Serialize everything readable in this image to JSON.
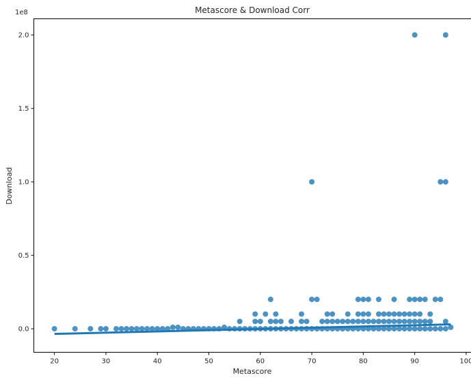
{
  "chart_data": {
    "type": "scatter",
    "title": "Metascore & Download Corr",
    "xlabel": "Metascore",
    "ylabel": "Download",
    "y_offset_label": "1e8",
    "xlim": [
      16,
      101
    ],
    "ylim": [
      -0.16,
      2.11
    ],
    "y_scale_factor": 100000000,
    "x_ticks": [
      20,
      30,
      40,
      50,
      60,
      70,
      80,
      90,
      100
    ],
    "x_tick_labels": [
      "20",
      "30",
      "40",
      "50",
      "60",
      "70",
      "80",
      "90",
      "100"
    ],
    "y_ticks": [
      0.0,
      0.5,
      1.0,
      1.5,
      2.0
    ],
    "y_tick_labels": [
      "0.0",
      "0.5",
      "1.0",
      "1.5",
      "2.0"
    ],
    "grid": false,
    "color": "#1f77b4",
    "points": [
      {
        "x": 20,
        "y": 0.0
      },
      {
        "x": 24,
        "y": 0.0
      },
      {
        "x": 27,
        "y": 0.0
      },
      {
        "x": 29,
        "y": 0.0
      },
      {
        "x": 30,
        "y": 0.0
      },
      {
        "x": 32,
        "y": 0.0
      },
      {
        "x": 33,
        "y": 0.0
      },
      {
        "x": 34,
        "y": 0.0
      },
      {
        "x": 35,
        "y": 0.0
      },
      {
        "x": 36,
        "y": 0.0
      },
      {
        "x": 37,
        "y": 0.0
      },
      {
        "x": 38,
        "y": 0.0
      },
      {
        "x": 39,
        "y": 0.0
      },
      {
        "x": 40,
        "y": 0.0
      },
      {
        "x": 41,
        "y": 0.0
      },
      {
        "x": 42,
        "y": 0.0
      },
      {
        "x": 43,
        "y": 0.01
      },
      {
        "x": 44,
        "y": 0.01
      },
      {
        "x": 45,
        "y": 0.0
      },
      {
        "x": 46,
        "y": 0.0
      },
      {
        "x": 47,
        "y": 0.0
      },
      {
        "x": 48,
        "y": 0.0
      },
      {
        "x": 49,
        "y": 0.0
      },
      {
        "x": 50,
        "y": 0.0
      },
      {
        "x": 51,
        "y": 0.0
      },
      {
        "x": 52,
        "y": 0.0
      },
      {
        "x": 53,
        "y": 0.01
      },
      {
        "x": 54,
        "y": 0.0
      },
      {
        "x": 55,
        "y": 0.0
      },
      {
        "x": 56,
        "y": 0.05
      },
      {
        "x": 56,
        "y": 0.0
      },
      {
        "x": 57,
        "y": 0.0
      },
      {
        "x": 58,
        "y": 0.0
      },
      {
        "x": 59,
        "y": 0.1
      },
      {
        "x": 59,
        "y": 0.05
      },
      {
        "x": 59,
        "y": 0.0
      },
      {
        "x": 60,
        "y": 0.05
      },
      {
        "x": 60,
        "y": 0.0
      },
      {
        "x": 61,
        "y": 0.1
      },
      {
        "x": 61,
        "y": 0.0
      },
      {
        "x": 62,
        "y": 0.2
      },
      {
        "x": 62,
        "y": 0.05
      },
      {
        "x": 62,
        "y": 0.0
      },
      {
        "x": 63,
        "y": 0.1
      },
      {
        "x": 63,
        "y": 0.05
      },
      {
        "x": 63,
        "y": 0.0
      },
      {
        "x": 64,
        "y": 0.05
      },
      {
        "x": 64,
        "y": 0.0
      },
      {
        "x": 65,
        "y": 0.0
      },
      {
        "x": 66,
        "y": 0.05
      },
      {
        "x": 66,
        "y": 0.0
      },
      {
        "x": 67,
        "y": 0.0
      },
      {
        "x": 68,
        "y": 0.1
      },
      {
        "x": 68,
        "y": 0.05
      },
      {
        "x": 68,
        "y": 0.0
      },
      {
        "x": 69,
        "y": 0.05
      },
      {
        "x": 69,
        "y": 0.0
      },
      {
        "x": 70,
        "y": 1.0
      },
      {
        "x": 70,
        "y": 0.2
      },
      {
        "x": 70,
        "y": 0.0
      },
      {
        "x": 71,
        "y": 0.2
      },
      {
        "x": 71,
        "y": 0.0
      },
      {
        "x": 72,
        "y": 0.05
      },
      {
        "x": 72,
        "y": 0.0
      },
      {
        "x": 73,
        "y": 0.1
      },
      {
        "x": 73,
        "y": 0.05
      },
      {
        "x": 73,
        "y": 0.0
      },
      {
        "x": 74,
        "y": 0.1
      },
      {
        "x": 74,
        "y": 0.05
      },
      {
        "x": 74,
        "y": 0.0
      },
      {
        "x": 75,
        "y": 0.05
      },
      {
        "x": 75,
        "y": 0.0
      },
      {
        "x": 76,
        "y": 0.05
      },
      {
        "x": 76,
        "y": 0.0
      },
      {
        "x": 77,
        "y": 0.1
      },
      {
        "x": 77,
        "y": 0.05
      },
      {
        "x": 77,
        "y": 0.0
      },
      {
        "x": 78,
        "y": 0.05
      },
      {
        "x": 78,
        "y": 0.0
      },
      {
        "x": 79,
        "y": 0.2
      },
      {
        "x": 79,
        "y": 0.1
      },
      {
        "x": 79,
        "y": 0.05
      },
      {
        "x": 79,
        "y": 0.0
      },
      {
        "x": 80,
        "y": 0.2
      },
      {
        "x": 80,
        "y": 0.1
      },
      {
        "x": 80,
        "y": 0.05
      },
      {
        "x": 80,
        "y": 0.0
      },
      {
        "x": 81,
        "y": 0.2
      },
      {
        "x": 81,
        "y": 0.1
      },
      {
        "x": 81,
        "y": 0.05
      },
      {
        "x": 81,
        "y": 0.0
      },
      {
        "x": 82,
        "y": 0.05
      },
      {
        "x": 82,
        "y": 0.0
      },
      {
        "x": 83,
        "y": 0.2
      },
      {
        "x": 83,
        "y": 0.1
      },
      {
        "x": 83,
        "y": 0.05
      },
      {
        "x": 83,
        "y": 0.0
      },
      {
        "x": 84,
        "y": 0.1
      },
      {
        "x": 84,
        "y": 0.05
      },
      {
        "x": 84,
        "y": 0.0
      },
      {
        "x": 85,
        "y": 0.1
      },
      {
        "x": 85,
        "y": 0.05
      },
      {
        "x": 85,
        "y": 0.0
      },
      {
        "x": 86,
        "y": 0.2
      },
      {
        "x": 86,
        "y": 0.1
      },
      {
        "x": 86,
        "y": 0.05
      },
      {
        "x": 86,
        "y": 0.0
      },
      {
        "x": 87,
        "y": 0.1
      },
      {
        "x": 87,
        "y": 0.05
      },
      {
        "x": 87,
        "y": 0.0
      },
      {
        "x": 88,
        "y": 0.1
      },
      {
        "x": 88,
        "y": 0.05
      },
      {
        "x": 88,
        "y": 0.0
      },
      {
        "x": 89,
        "y": 0.2
      },
      {
        "x": 89,
        "y": 0.1
      },
      {
        "x": 89,
        "y": 0.05
      },
      {
        "x": 89,
        "y": 0.0
      },
      {
        "x": 90,
        "y": 2.0
      },
      {
        "x": 90,
        "y": 0.2
      },
      {
        "x": 90,
        "y": 0.1
      },
      {
        "x": 90,
        "y": 0.05
      },
      {
        "x": 90,
        "y": 0.0
      },
      {
        "x": 91,
        "y": 0.2
      },
      {
        "x": 91,
        "y": 0.1
      },
      {
        "x": 91,
        "y": 0.05
      },
      {
        "x": 91,
        "y": 0.0
      },
      {
        "x": 92,
        "y": 0.2
      },
      {
        "x": 92,
        "y": 0.05
      },
      {
        "x": 92,
        "y": 0.0
      },
      {
        "x": 93,
        "y": 0.1
      },
      {
        "x": 93,
        "y": 0.05
      },
      {
        "x": 93,
        "y": 0.0
      },
      {
        "x": 94,
        "y": 0.2
      },
      {
        "x": 94,
        "y": 0.0
      },
      {
        "x": 95,
        "y": 1.0
      },
      {
        "x": 95,
        "y": 0.2
      },
      {
        "x": 95,
        "y": 0.0
      },
      {
        "x": 96,
        "y": 2.0
      },
      {
        "x": 96,
        "y": 1.0
      },
      {
        "x": 96,
        "y": 0.05
      },
      {
        "x": 96,
        "y": 0.0
      },
      {
        "x": 97,
        "y": 0.01
      }
    ],
    "trend_line": {
      "x": [
        20,
        97
      ],
      "y": [
        -0.035,
        0.03
      ]
    }
  }
}
